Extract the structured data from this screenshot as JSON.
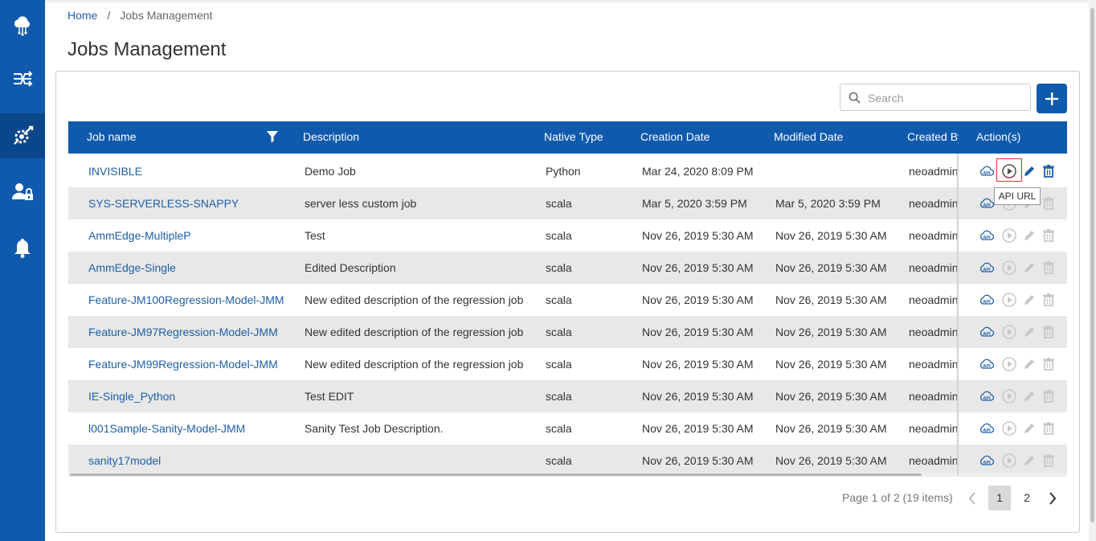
{
  "breadcrumb": {
    "home": "Home",
    "separator": "/",
    "current": "Jobs Management"
  },
  "page_title": "Jobs Management",
  "sidebar": {
    "items": [
      {
        "icon": "cloud-network-icon"
      },
      {
        "icon": "shuffle-flow-icon"
      },
      {
        "icon": "gear-wrench-icon",
        "active": true
      },
      {
        "icon": "user-lock-icon"
      },
      {
        "icon": "bell-icon"
      }
    ]
  },
  "search": {
    "placeholder": "Search"
  },
  "table": {
    "headers": [
      "Job name",
      "Description",
      "Native Type",
      "Creation Date",
      "Modified Date",
      "Created By",
      "Action(s)"
    ],
    "rows": [
      {
        "name": "INVISIBLE",
        "description": "Demo Job",
        "type": "Python",
        "created": "Mar 24, 2020 8:09 PM",
        "modified": "",
        "by": "neoadmin",
        "enabled": true
      },
      {
        "name": "SYS-SERVERLESS-SNAPPY",
        "description": "server less custom job",
        "type": "scala",
        "created": "Mar 5, 2020 3:59 PM",
        "modified": "Mar 5, 2020 3:59 PM",
        "by": "neoadmin",
        "enabled": false
      },
      {
        "name": "AmmEdge-MultipleP",
        "description": "Test",
        "type": "scala",
        "created": "Nov 26, 2019 5:30 AM",
        "modified": "Nov 26, 2019 5:30 AM",
        "by": "neoadmin",
        "enabled": false
      },
      {
        "name": "AmmEdge-Single",
        "description": "Edited Description",
        "type": "scala",
        "created": "Nov 26, 2019 5:30 AM",
        "modified": "Nov 26, 2019 5:30 AM",
        "by": "neoadmin",
        "enabled": false
      },
      {
        "name": "Feature-JM100Regression-Model-JMM",
        "description": "New edited description of the regression job",
        "type": "scala",
        "created": "Nov 26, 2019 5:30 AM",
        "modified": "Nov 26, 2019 5:30 AM",
        "by": "neoadmin",
        "enabled": false
      },
      {
        "name": "Feature-JM97Regression-Model-JMM",
        "description": "New edited description of the regression job",
        "type": "scala",
        "created": "Nov 26, 2019 5:30 AM",
        "modified": "Nov 26, 2019 5:30 AM",
        "by": "neoadmin",
        "enabled": false
      },
      {
        "name": "Feature-JM99Regression-Model-JMM",
        "description": "New edited description of the regression job",
        "type": "scala",
        "created": "Nov 26, 2019 5:30 AM",
        "modified": "Nov 26, 2019 5:30 AM",
        "by": "neoadmin",
        "enabled": false
      },
      {
        "name": "IE-Single_Python",
        "description": "Test EDIT",
        "type": "scala",
        "created": "Nov 26, 2019 5:30 AM",
        "modified": "Nov 26, 2019 5:30 AM",
        "by": "neoadmin",
        "enabled": false
      },
      {
        "name": "l001Sample-Sanity-Model-JMM",
        "description": "Sanity Test Job Description.",
        "type": "scala",
        "created": "Nov 26, 2019 5:30 AM",
        "modified": "Nov 26, 2019 5:30 AM",
        "by": "neoadmin",
        "enabled": false
      },
      {
        "name": "sanity17model",
        "description": "",
        "type": "scala",
        "created": "Nov 26, 2019 5:30 AM",
        "modified": "Nov 26, 2019 5:30 AM",
        "by": "neoadmin",
        "enabled": false
      }
    ]
  },
  "tooltip": "API URL",
  "pagination": {
    "summary": "Page 1 of 2 (19 items)",
    "pages": [
      "1",
      "2"
    ],
    "current": "1"
  },
  "colors": {
    "primary": "#0f5aad",
    "link": "#1d5fa8",
    "row_alt": "#e8e8e8",
    "highlight": "#e0342f"
  }
}
